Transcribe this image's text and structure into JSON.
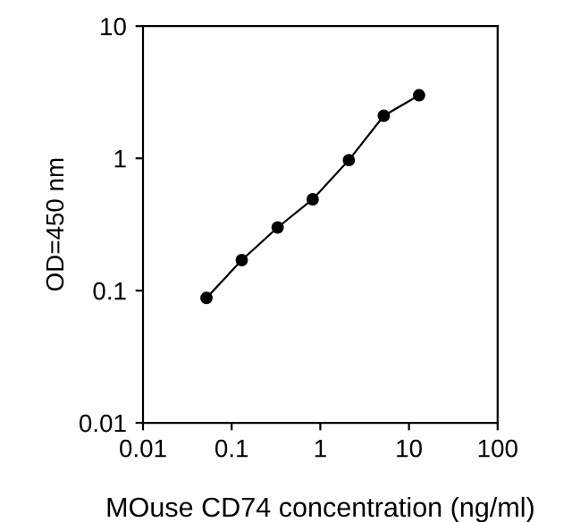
{
  "chart_data": {
    "type": "line",
    "xlabel": "MOuse CD74 concentration (ng/ml)",
    "ylabel": "OD=450 nm",
    "log": "xy",
    "x": [
      0.052,
      0.13,
      0.33,
      0.82,
      2.1,
      5.2,
      13
    ],
    "series": [
      {
        "color": "#000000",
        "values": [
          0.088,
          0.17,
          0.3,
          0.49,
          0.97,
          2.1,
          3.0
        ]
      }
    ],
    "marker": "circle",
    "line_style": "solid",
    "grid": false,
    "legend": false,
    "xlim": [
      0.01,
      100
    ],
    "xticks": [
      0.01,
      0.1,
      1,
      10,
      100
    ],
    "ylim": [
      0.01,
      10
    ],
    "yticks": [
      0.01,
      0.1,
      1,
      10
    ]
  }
}
